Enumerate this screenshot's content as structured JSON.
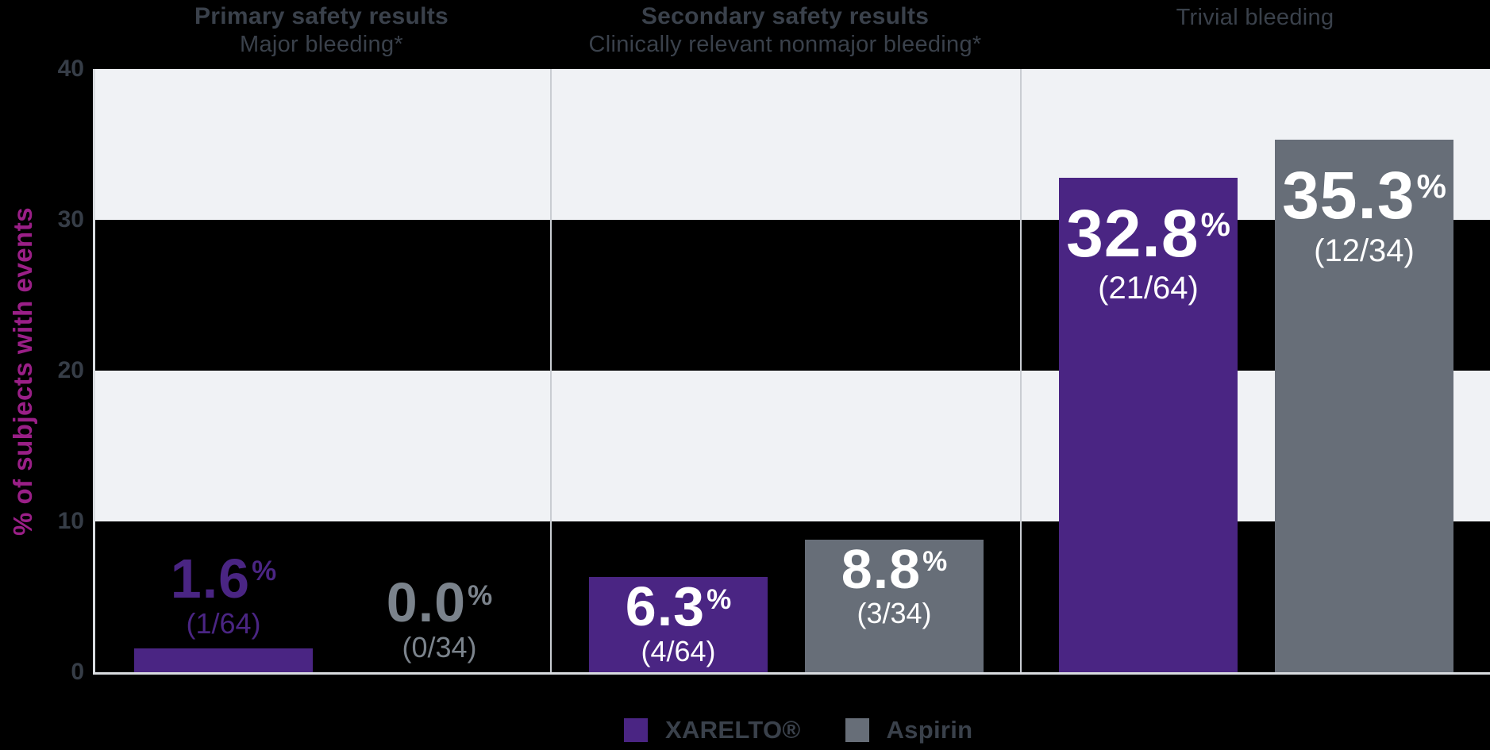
{
  "chart_data": {
    "type": "bar",
    "title_groups": [
      {
        "heading": "Primary safety results",
        "subheading": "Major bleeding*"
      },
      {
        "heading": "Secondary safety results",
        "subheading": "Clinically relevant nonmajor bleeding*"
      },
      {
        "heading": "",
        "subheading": "Trivial bleeding"
      }
    ],
    "ylabel": "% of subjects with events",
    "ylim": [
      0,
      40
    ],
    "yticks": [
      0,
      10,
      20,
      30,
      40
    ],
    "legend_position": "bottom",
    "grid": "alternating horizontal bands",
    "band_colors": [
      "#F0F2F5",
      "#000000"
    ],
    "series": [
      {
        "name": "XARELTO®",
        "color": "#4A2583",
        "outside_label_color": "#4A2583",
        "values": [
          1.6,
          6.3,
          32.8
        ],
        "pct_labels": [
          "1.6%",
          "6.3%",
          "32.8%"
        ],
        "fractions": [
          "(1/64)",
          "(4/64)",
          "(21/64)"
        ]
      },
      {
        "name": "Aspirin",
        "color": "#676E78",
        "outside_label_color": "#7B838C",
        "values": [
          0.0,
          8.8,
          35.3
        ],
        "pct_labels": [
          "0.0%",
          "8.8%",
          "35.3%"
        ],
        "fractions": [
          "(0/34)",
          "(3/34)",
          "(12/34)"
        ]
      }
    ]
  },
  "colors": {
    "background": "#000000",
    "band_light": "#F0F2F5",
    "band_dark": "#000000",
    "axis_line": "#D9DCE0",
    "separator": "#C9CDD2",
    "heading_text": "#3A414B",
    "tick_text": "#363D47",
    "ylabel_text": "#9A1F87",
    "legend_text": "#3A414B",
    "bar_label_inside": "#FFFFFF"
  }
}
